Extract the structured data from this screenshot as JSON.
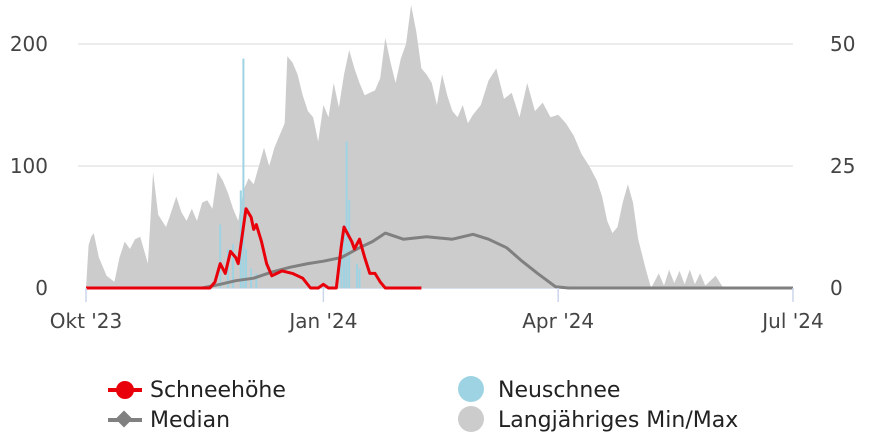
{
  "chart_data": {
    "type": "line",
    "x_axis": {
      "ticks": [
        "Okt '23",
        "Jan '24",
        "Apr '24",
        "Jul '24"
      ],
      "range": [
        "2023-10-01",
        "2024-07-01"
      ]
    },
    "y_axis_left": {
      "ticks": [
        "0",
        "100",
        "200"
      ],
      "range": [
        0,
        200
      ]
    },
    "y_axis_right": {
      "ticks": [
        "0",
        "25",
        "50"
      ],
      "range": [
        0,
        50
      ]
    },
    "grid": true,
    "legend_position": "bottom",
    "series": [
      {
        "name": "Schneehöhe",
        "type": "line",
        "axis": "left",
        "color": "#e8000b",
        "points": [
          [
            "2023-10-01",
            0
          ],
          [
            "2023-11-12",
            0
          ],
          [
            "2023-11-18",
            0
          ],
          [
            "2023-11-20",
            5
          ],
          [
            "2023-11-22",
            20
          ],
          [
            "2023-11-24",
            12
          ],
          [
            "2023-11-26",
            30
          ],
          [
            "2023-11-28",
            25
          ],
          [
            "2023-11-29",
            20
          ],
          [
            "2023-12-01",
            50
          ],
          [
            "2023-12-02",
            65
          ],
          [
            "2023-12-04",
            58
          ],
          [
            "2023-12-05",
            48
          ],
          [
            "2023-12-06",
            52
          ],
          [
            "2023-12-08",
            38
          ],
          [
            "2023-12-10",
            20
          ],
          [
            "2023-12-12",
            10
          ],
          [
            "2023-12-14",
            12
          ],
          [
            "2023-12-16",
            14
          ],
          [
            "2023-12-20",
            12
          ],
          [
            "2023-12-24",
            8
          ],
          [
            "2023-12-27",
            0
          ],
          [
            "2023-12-30",
            0
          ],
          [
            "2024-01-01",
            3
          ],
          [
            "2024-01-03",
            0
          ],
          [
            "2024-01-06",
            0
          ],
          [
            "2024-01-08",
            35
          ],
          [
            "2024-01-09",
            50
          ],
          [
            "2024-01-11",
            42
          ],
          [
            "2024-01-12",
            38
          ],
          [
            "2024-01-13",
            32
          ],
          [
            "2024-01-15",
            40
          ],
          [
            "2024-01-17",
            25
          ],
          [
            "2024-01-19",
            12
          ],
          [
            "2024-01-21",
            12
          ],
          [
            "2024-01-23",
            5
          ],
          [
            "2024-01-25",
            0
          ],
          [
            "2024-02-08",
            0
          ]
        ]
      },
      {
        "name": "Median",
        "type": "line",
        "axis": "left",
        "color": "#808080",
        "points": [
          [
            "2023-10-01",
            0
          ],
          [
            "2023-11-15",
            0
          ],
          [
            "2023-11-22",
            3
          ],
          [
            "2023-11-28",
            6
          ],
          [
            "2023-12-05",
            8
          ],
          [
            "2023-12-12",
            13
          ],
          [
            "2023-12-19",
            17
          ],
          [
            "2023-12-26",
            20
          ],
          [
            "2024-01-01",
            22
          ],
          [
            "2024-01-08",
            25
          ],
          [
            "2024-01-15",
            33
          ],
          [
            "2024-01-20",
            38
          ],
          [
            "2024-01-25",
            45
          ],
          [
            "2024-02-01",
            40
          ],
          [
            "2024-02-10",
            42
          ],
          [
            "2024-02-20",
            40
          ],
          [
            "2024-02-28",
            44
          ],
          [
            "2024-03-05",
            40
          ],
          [
            "2024-03-12",
            33
          ],
          [
            "2024-03-18",
            22
          ],
          [
            "2024-03-24",
            12
          ],
          [
            "2024-03-31",
            1
          ],
          [
            "2024-04-05",
            0
          ],
          [
            "2024-07-01",
            0
          ]
        ]
      },
      {
        "name": "Neuschnee",
        "type": "bar",
        "axis": "right",
        "color": "#9ed3e3",
        "points": [
          [
            "2023-11-22",
            13
          ],
          [
            "2023-11-25",
            8
          ],
          [
            "2023-11-27",
            9
          ],
          [
            "2023-11-30",
            20
          ],
          [
            "2023-12-01",
            47
          ],
          [
            "2023-12-02",
            8
          ],
          [
            "2023-12-04",
            4
          ],
          [
            "2023-12-06",
            3
          ],
          [
            "2024-01-08",
            8
          ],
          [
            "2024-01-09",
            13
          ],
          [
            "2024-01-10",
            30
          ],
          [
            "2024-01-11",
            18
          ],
          [
            "2024-01-14",
            5
          ],
          [
            "2024-01-15",
            4
          ]
        ]
      },
      {
        "name": "Langjähriges Min/Max",
        "type": "area",
        "axis": "left",
        "color": "#cccccc",
        "points": [
          [
            "2023-10-01",
            0
          ],
          [
            "2023-10-02",
            35
          ],
          [
            "2023-10-03",
            42
          ],
          [
            "2023-10-04",
            45
          ],
          [
            "2023-10-06",
            25
          ],
          [
            "2023-10-09",
            10
          ],
          [
            "2023-10-12",
            5
          ],
          [
            "2023-10-14",
            25
          ],
          [
            "2023-10-16",
            38
          ],
          [
            "2023-10-18",
            32
          ],
          [
            "2023-10-20",
            40
          ],
          [
            "2023-10-22",
            42
          ],
          [
            "2023-10-25",
            20
          ],
          [
            "2023-10-27",
            95
          ],
          [
            "2023-10-29",
            60
          ],
          [
            "2023-11-01",
            50
          ],
          [
            "2023-11-03",
            62
          ],
          [
            "2023-11-05",
            75
          ],
          [
            "2023-11-07",
            62
          ],
          [
            "2023-11-09",
            55
          ],
          [
            "2023-11-11",
            65
          ],
          [
            "2023-11-13",
            55
          ],
          [
            "2023-11-15",
            70
          ],
          [
            "2023-11-17",
            72
          ],
          [
            "2023-11-19",
            65
          ],
          [
            "2023-11-21",
            95
          ],
          [
            "2023-11-23",
            88
          ],
          [
            "2023-11-25",
            78
          ],
          [
            "2023-11-27",
            65
          ],
          [
            "2023-11-29",
            55
          ],
          [
            "2023-12-01",
            80
          ],
          [
            "2023-12-03",
            90
          ],
          [
            "2023-12-05",
            85
          ],
          [
            "2023-12-07",
            100
          ],
          [
            "2023-12-09",
            115
          ],
          [
            "2023-12-11",
            100
          ],
          [
            "2023-12-13",
            115
          ],
          [
            "2023-12-15",
            125
          ],
          [
            "2023-12-17",
            135
          ],
          [
            "2023-12-18",
            190
          ],
          [
            "2023-12-20",
            185
          ],
          [
            "2023-12-22",
            175
          ],
          [
            "2023-12-24",
            158
          ],
          [
            "2023-12-26",
            145
          ],
          [
            "2023-12-28",
            140
          ],
          [
            "2023-12-30",
            120
          ],
          [
            "2024-01-01",
            150
          ],
          [
            "2024-01-03",
            140
          ],
          [
            "2024-01-05",
            168
          ],
          [
            "2024-01-07",
            148
          ],
          [
            "2024-01-09",
            175
          ],
          [
            "2024-01-11",
            195
          ],
          [
            "2024-01-13",
            180
          ],
          [
            "2024-01-15",
            168
          ],
          [
            "2024-01-17",
            158
          ],
          [
            "2024-01-19",
            160
          ],
          [
            "2024-01-21",
            162
          ],
          [
            "2024-01-23",
            172
          ],
          [
            "2024-01-25",
            205
          ],
          [
            "2024-01-27",
            185
          ],
          [
            "2024-01-29",
            168
          ],
          [
            "2024-01-31",
            188
          ],
          [
            "2024-02-02",
            200
          ],
          [
            "2024-02-04",
            232
          ],
          [
            "2024-02-06",
            210
          ],
          [
            "2024-02-08",
            180
          ],
          [
            "2024-02-10",
            175
          ],
          [
            "2024-02-12",
            168
          ],
          [
            "2024-02-14",
            150
          ],
          [
            "2024-02-16",
            175
          ],
          [
            "2024-02-18",
            158
          ],
          [
            "2024-02-20",
            145
          ],
          [
            "2024-02-22",
            140
          ],
          [
            "2024-02-24",
            150
          ],
          [
            "2024-02-26",
            135
          ],
          [
            "2024-02-28",
            142
          ],
          [
            "2024-03-02",
            150
          ],
          [
            "2024-03-05",
            170
          ],
          [
            "2024-03-08",
            180
          ],
          [
            "2024-03-11",
            155
          ],
          [
            "2024-03-14",
            160
          ],
          [
            "2024-03-17",
            140
          ],
          [
            "2024-03-20",
            168
          ],
          [
            "2024-03-23",
            145
          ],
          [
            "2024-03-26",
            152
          ],
          [
            "2024-03-29",
            140
          ],
          [
            "2024-04-01",
            142
          ],
          [
            "2024-04-04",
            135
          ],
          [
            "2024-04-07",
            125
          ],
          [
            "2024-04-10",
            110
          ],
          [
            "2024-04-13",
            100
          ],
          [
            "2024-04-16",
            88
          ],
          [
            "2024-04-18",
            75
          ],
          [
            "2024-04-20",
            55
          ],
          [
            "2024-04-22",
            45
          ],
          [
            "2024-04-24",
            50
          ],
          [
            "2024-04-26",
            70
          ],
          [
            "2024-04-28",
            85
          ],
          [
            "2024-04-30",
            70
          ],
          [
            "2024-05-02",
            40
          ],
          [
            "2024-05-05",
            15
          ],
          [
            "2024-05-07",
            0
          ],
          [
            "2024-05-10",
            12
          ],
          [
            "2024-05-12",
            2
          ],
          [
            "2024-05-14",
            15
          ],
          [
            "2024-05-16",
            4
          ],
          [
            "2024-05-18",
            14
          ],
          [
            "2024-05-20",
            3
          ],
          [
            "2024-05-22",
            15
          ],
          [
            "2024-05-24",
            3
          ],
          [
            "2024-05-26",
            12
          ],
          [
            "2024-05-28",
            2
          ],
          [
            "2024-06-01",
            10
          ],
          [
            "2024-06-04",
            0
          ],
          [
            "2024-07-01",
            0
          ]
        ]
      }
    ]
  }
}
